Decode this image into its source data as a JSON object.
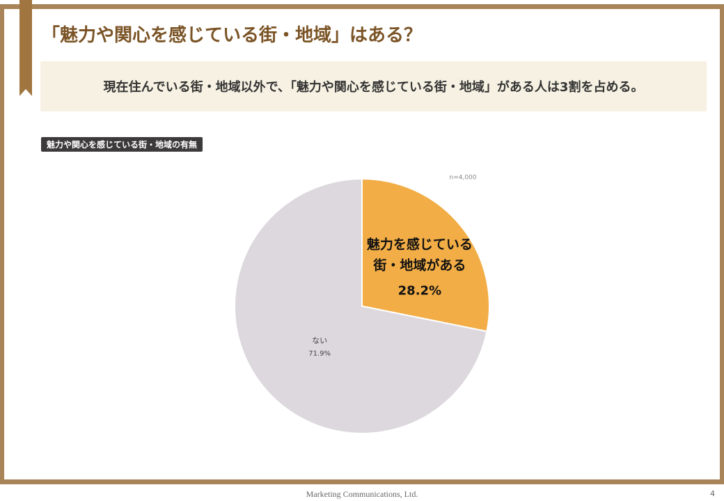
{
  "slide": {
    "title": "「魅力や関心を感じている街・地域」はある？",
    "summary": "現在住んでいる街・地域以外で、「魅力や関心を感じている街・地域」がある人は3割を占める。",
    "footer": "Marketing Communications, Ltd.",
    "page_number": 4
  },
  "chart_data": {
    "type": "pie",
    "title": "魅力や関心を感じている街・地域の有無",
    "note": "n=4,000",
    "categories": [
      "魅力を感じている\n街・地域がある",
      "ない"
    ],
    "values": [
      28.2,
      71.9
    ],
    "value_labels": [
      "28.2%",
      "71.9%"
    ],
    "colors": [
      "#f2ad46",
      "#dcd8dd"
    ]
  }
}
